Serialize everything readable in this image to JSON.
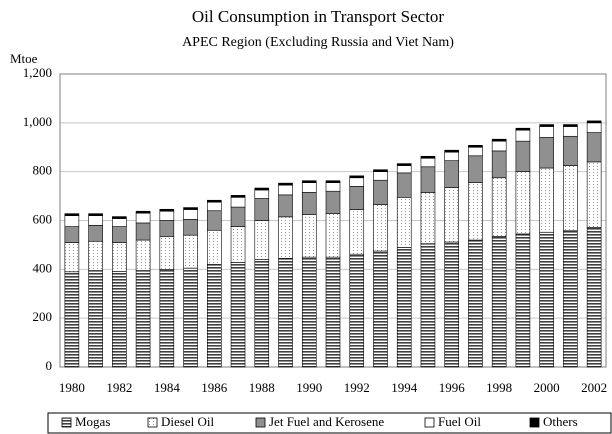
{
  "chart_data": {
    "type": "stacked_bar",
    "title": "Oil Consumption in Transport Sector",
    "subtitle": "APEC Region (Excluding Russia and Viet Nam)",
    "y_label": "Mtoe",
    "categories": [
      "1980",
      null,
      "1982",
      null,
      "1984",
      null,
      "1986",
      null,
      "1988",
      null,
      "1990",
      null,
      "1992",
      null,
      "1994",
      null,
      "1996",
      null,
      "1998",
      null,
      "2000",
      null,
      "2002"
    ],
    "series": [
      {
        "name": "Mogas",
        "color": "#404040",
        "values": [
          390,
          395,
          392,
          395,
          400,
          405,
          420,
          428,
          440,
          445,
          450,
          450,
          462,
          475,
          490,
          505,
          512,
          520,
          535,
          545,
          552,
          558,
          572
        ]
      },
      {
        "name": "Diesel Oil",
        "color": "#e6e6e6",
        "values": [
          120,
          120,
          118,
          125,
          135,
          135,
          140,
          147,
          160,
          170,
          175,
          178,
          183,
          190,
          205,
          210,
          223,
          235,
          240,
          255,
          263,
          267,
          268
        ]
      },
      {
        "name": "Jet Fuel and Kerosene",
        "color": "#909090",
        "values": [
          65,
          65,
          65,
          70,
          65,
          65,
          80,
          80,
          90,
          90,
          90,
          92,
          95,
          100,
          100,
          105,
          110,
          110,
          110,
          125,
          125,
          120,
          120
        ]
      },
      {
        "name": "Fuel Oil",
        "color": "#ffffff",
        "values": [
          45,
          40,
          33,
          40,
          38,
          40,
          35,
          40,
          35,
          40,
          40,
          35,
          35,
          35,
          30,
          35,
          35,
          35,
          40,
          45,
          45,
          40,
          40
        ]
      },
      {
        "name": "Others",
        "color": "#000000",
        "values": [
          8,
          8,
          8,
          8,
          8,
          8,
          8,
          8,
          8,
          8,
          8,
          8,
          8,
          8,
          8,
          8,
          8,
          8,
          8,
          8,
          8,
          8,
          8
        ]
      }
    ],
    "ylim": [
      0,
      1200
    ],
    "yticks": [
      0,
      200,
      400,
      600,
      800,
      {
        "value": 1000,
        "label": "1,000"
      },
      {
        "value": 1200,
        "label": "1,200"
      }
    ],
    "grid": true,
    "legend": "bottom"
  }
}
